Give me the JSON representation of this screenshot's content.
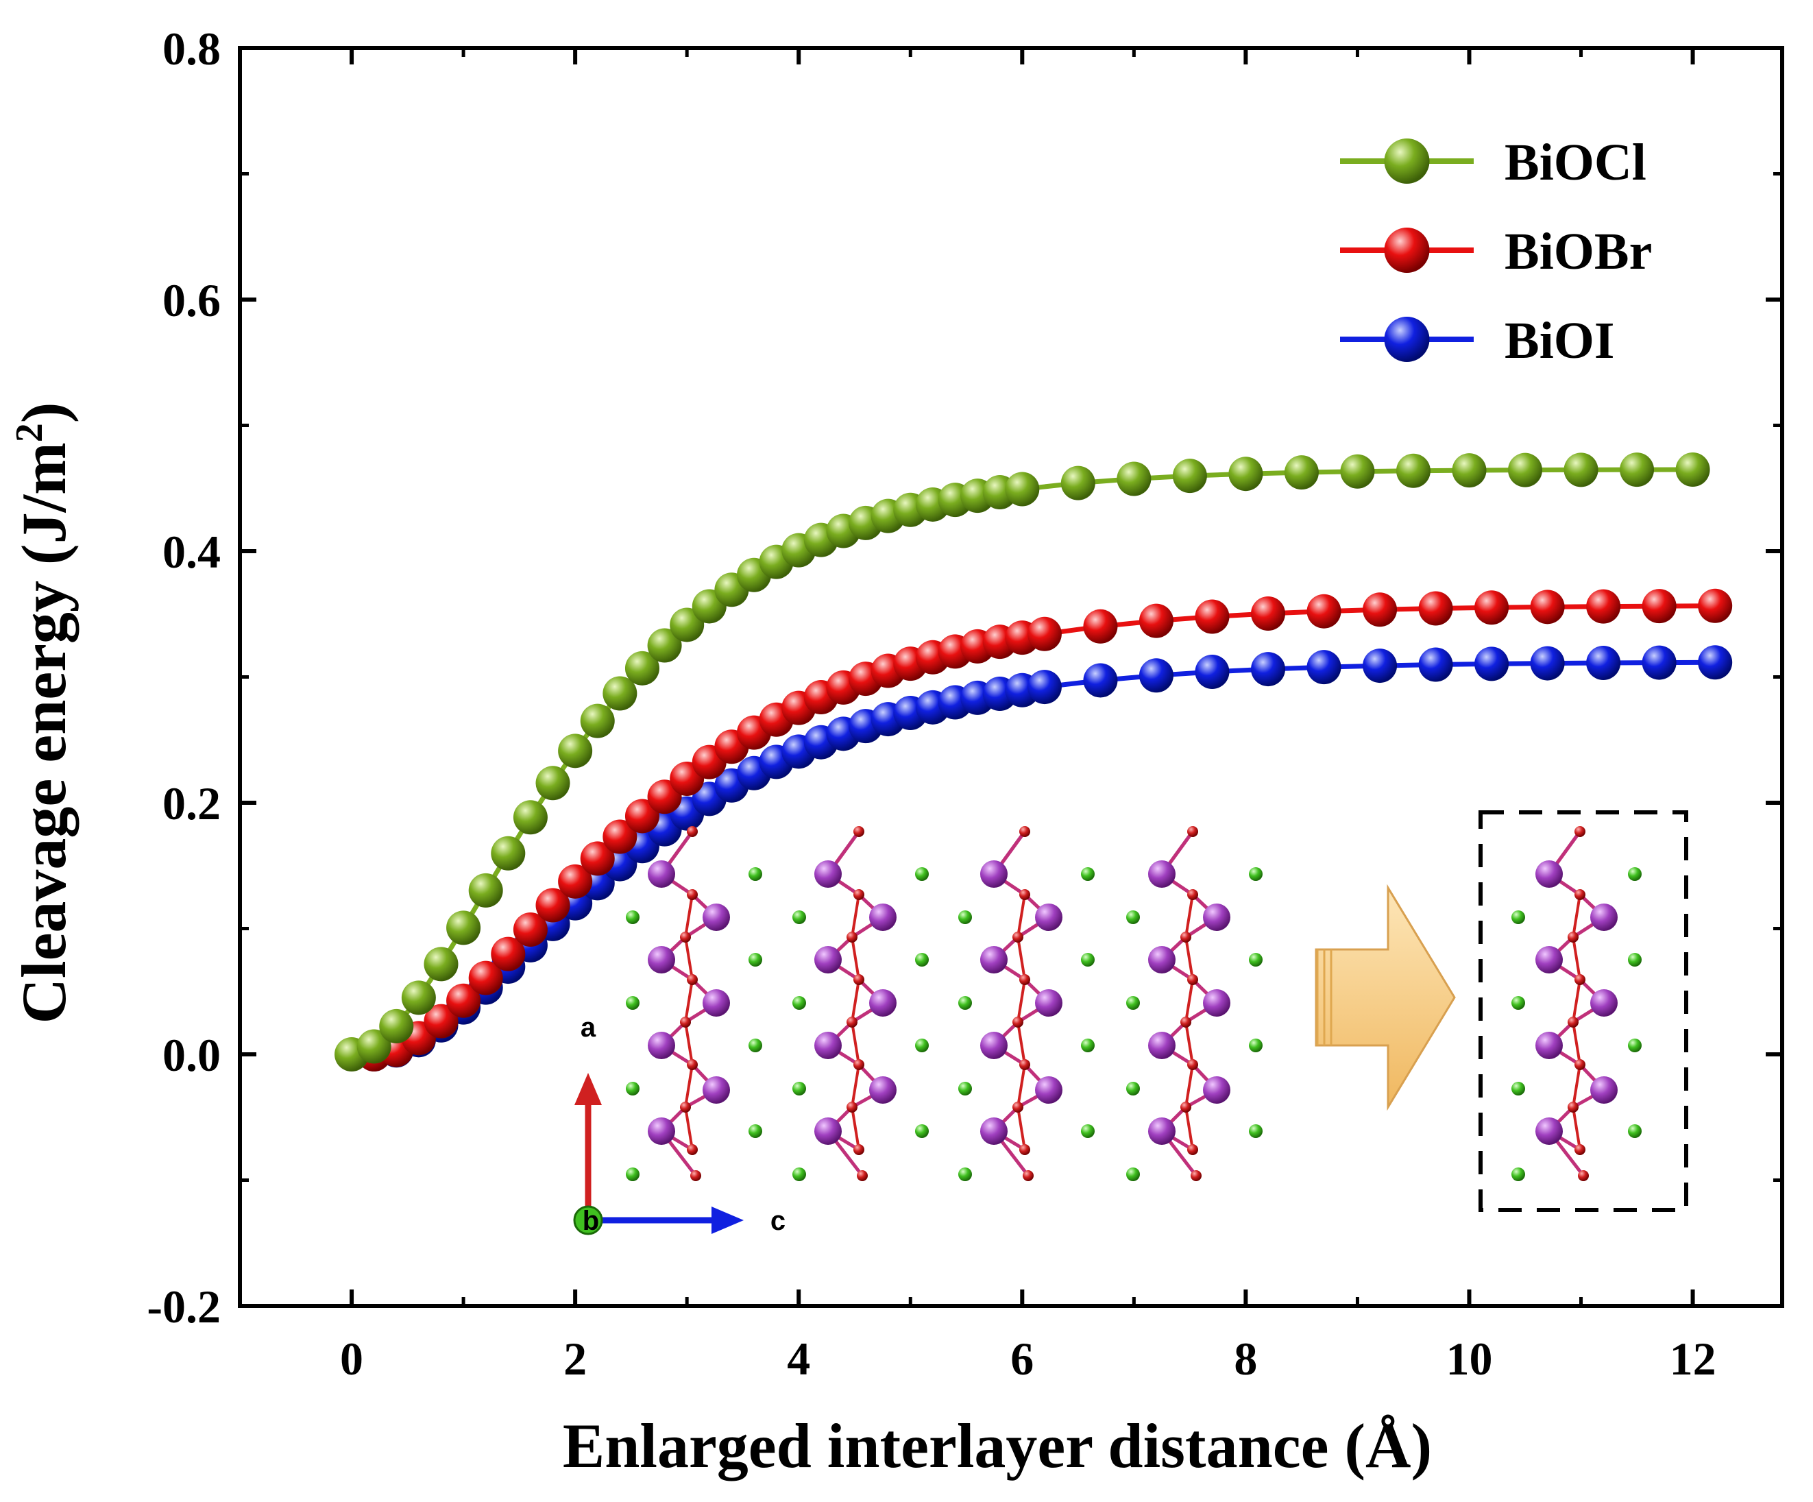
{
  "chart_data": {
    "type": "line",
    "title": "",
    "xlabel": "Enlarged interlayer distance (Å)",
    "ylabel": "Cleavage energy (J/m²)",
    "ylabel_prefix": "Cleavage energy (J/m",
    "ylabel_sup": "2",
    "ylabel_suffix": ")",
    "xlim": [
      -1,
      12.8
    ],
    "ylim": [
      -0.2,
      0.8
    ],
    "xticks": [
      {
        "value": 0,
        "label": "0"
      },
      {
        "value": 2,
        "label": "2"
      },
      {
        "value": 4,
        "label": "4"
      },
      {
        "value": 6,
        "label": "6"
      },
      {
        "value": 8,
        "label": "8"
      },
      {
        "value": 10,
        "label": "10"
      },
      {
        "value": 12,
        "label": "12"
      }
    ],
    "yticks": [
      {
        "value": -0.2,
        "label": "-0.2"
      },
      {
        "value": 0.0,
        "label": "0.0"
      },
      {
        "value": 0.2,
        "label": "0.2"
      },
      {
        "value": 0.4,
        "label": "0.4"
      },
      {
        "value": 0.6,
        "label": "0.6"
      },
      {
        "value": 0.8,
        "label": "0.8"
      }
    ],
    "legend_position": "top-right",
    "series": [
      {
        "name": "BiOCl",
        "color": "#7aad1f",
        "x_offset": 0.0,
        "E_max": 0.465,
        "lambda": 1.15,
        "n": 2.0
      },
      {
        "name": "BiOBr",
        "color": "#e81010",
        "x_offset": 0.2,
        "E_max": 0.357,
        "lambda": 1.35,
        "n": 2.0
      },
      {
        "name": "BiOI",
        "color": "#1020e0",
        "x_offset": 0.2,
        "E_max": 0.312,
        "lambda": 1.35,
        "n": 2.0
      }
    ],
    "x_dense": [
      0,
      0.2,
      0.4,
      0.6,
      0.8,
      1.0,
      1.2,
      1.4,
      1.6,
      1.8,
      2.0,
      2.2,
      2.4,
      2.6,
      2.8,
      3.0,
      3.2,
      3.4,
      3.6,
      3.8,
      4.0,
      4.2,
      4.4,
      4.6,
      4.8,
      5.0,
      5.2,
      5.4,
      5.6,
      5.8,
      6.0
    ],
    "x_sparse": [
      6.5,
      7.0,
      7.5,
      8.0,
      8.5,
      9.0,
      9.5,
      10.0,
      10.5,
      11.0,
      11.5,
      12.0
    ],
    "inset": {
      "axis_a": "a",
      "axis_b": "b",
      "axis_c": "c",
      "bi_color": "#a040c0",
      "o_color": "#d02020",
      "halogen_color": "#40c020",
      "arrow_color": "#f5c97a"
    }
  }
}
